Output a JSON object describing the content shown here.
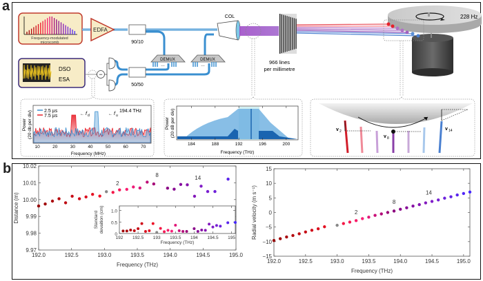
{
  "panel_a": {
    "letter": "a",
    "microcomb_label_1": "Frequency-modulated",
    "microcomb_label_2": "microcomb",
    "edfa_label": "EDFA",
    "splitter_top_label": "90/10",
    "splitter_bottom_label": "50/50",
    "demux_label": "DEMUX",
    "demux_dots": "…",
    "col_label": "COL",
    "dso_label": "DSO",
    "esa_label": "ESA",
    "minus_sign": "−",
    "grating_label_1": "966 lines",
    "grating_label_2": "per millimetre",
    "rotation_label": "228 Hz",
    "inset_rf": {
      "legend": [
        "2.5 µs",
        "7.5 µs"
      ],
      "legend_colors": [
        "#3a8fd0",
        "#e8202a"
      ],
      "annotation_freq": "194.4 THz",
      "fd_label": "f",
      "fd_sub": "d",
      "fu_label": "f",
      "fu_sub": "u",
      "ylabel_1": "Power",
      "ylabel_2": "(20 db per div)",
      "xlabel": "Frequency (MHz)",
      "xticks": [
        "10",
        "20",
        "30",
        "40",
        "50",
        "60",
        "70"
      ]
    },
    "inset_spectrum": {
      "ylabel_1": "Power",
      "ylabel_2": "(20 dB per div)",
      "xlabel": "Frequency (THz)",
      "xticks": [
        "184",
        "188",
        "192",
        "196",
        "200"
      ]
    },
    "inset_wheel": {
      "v2": "v",
      "v2_sub": "2",
      "v8": "v",
      "v8_sub": "8",
      "v14": "v",
      "v14_sub": "14"
    }
  },
  "panel_b": {
    "letter": "b"
  },
  "chart_data": [
    {
      "type": "scatter",
      "title": "",
      "xlabel": "Frequency (THz)",
      "ylabel": "Distance (m)",
      "xlim": [
        192.0,
        195.0
      ],
      "ylim": [
        9.97,
        10.02
      ],
      "xticks": [
        "192.0",
        "192.5",
        "193.0",
        "193.5",
        "194.0",
        "194.5",
        "195.0"
      ],
      "yticks": [
        "9.97",
        "9.98",
        "9.99",
        "10.00",
        "10.01",
        "10.02"
      ],
      "annotations": [
        {
          "text": "2",
          "x": 193.2,
          "y": 10.0085
        },
        {
          "text": "8",
          "x": 193.8,
          "y": 10.0135
        },
        {
          "text": "14",
          "x": 194.42,
          "y": 10.0118
        }
      ],
      "points": [
        {
          "x": 192.0,
          "y": 9.9962
        },
        {
          "x": 192.1,
          "y": 9.9974
        },
        {
          "x": 192.21,
          "y": 9.9991
        },
        {
          "x": 192.31,
          "y": 10.0005
        },
        {
          "x": 192.41,
          "y": 9.9981
        },
        {
          "x": 192.51,
          "y": 10.002
        },
        {
          "x": 192.62,
          "y": 10.0005
        },
        {
          "x": 192.72,
          "y": 10.0016
        },
        {
          "x": 192.82,
          "y": 10.0031
        },
        {
          "x": 192.93,
          "y": 10.0021
        },
        {
          "x": 193.03,
          "y": 10.0047
        },
        {
          "x": 193.13,
          "y": 10.0043
        },
        {
          "x": 193.23,
          "y": 10.0058
        },
        {
          "x": 193.34,
          "y": 10.0061
        },
        {
          "x": 193.44,
          "y": 10.0075
        },
        {
          "x": 193.54,
          "y": 10.0069
        },
        {
          "x": 193.65,
          "y": 10.0104
        },
        {
          "x": 193.75,
          "y": 10.0093
        },
        {
          "x": 193.96,
          "y": 10.0068
        },
        {
          "x": 194.06,
          "y": 10.0062
        },
        {
          "x": 194.16,
          "y": 10.009
        },
        {
          "x": 194.26,
          "y": 10.0088
        },
        {
          "x": 194.37,
          "y": 10.002
        },
        {
          "x": 194.47,
          "y": 10.008
        },
        {
          "x": 194.57,
          "y": 10.0048
        },
        {
          "x": 194.68,
          "y": 10.0048
        },
        {
          "x": 194.88,
          "y": 10.0122
        }
      ],
      "inset": {
        "type": "scatter",
        "xlabel": "Frequency (THz)",
        "ylabel_1": "Standard",
        "ylabel_2": "devaition (cm)",
        "xlim": [
          192.0,
          195.1
        ],
        "ylim": [
          0,
          1.2
        ],
        "xticks": [
          "192",
          "192.5",
          "193",
          "193.5",
          "194",
          "194.5",
          "195"
        ],
        "yticks": [
          "0",
          "0.5",
          "1.0"
        ],
        "points": [
          {
            "x": 192.1,
            "y": 0.11
          },
          {
            "x": 192.2,
            "y": 0.11
          },
          {
            "x": 192.3,
            "y": 0.15
          },
          {
            "x": 192.4,
            "y": 0.12
          },
          {
            "x": 192.5,
            "y": 0.21
          },
          {
            "x": 192.6,
            "y": 0.43
          },
          {
            "x": 192.7,
            "y": 0.09
          },
          {
            "x": 192.8,
            "y": 0.12
          },
          {
            "x": 192.9,
            "y": 0.43
          },
          {
            "x": 193.0,
            "y": 0.05
          },
          {
            "x": 193.1,
            "y": 0.22
          },
          {
            "x": 193.2,
            "y": 0.08
          },
          {
            "x": 193.3,
            "y": 0.14
          },
          {
            "x": 193.4,
            "y": 0.1
          },
          {
            "x": 193.5,
            "y": 0.36
          },
          {
            "x": 193.6,
            "y": 0.12
          },
          {
            "x": 193.7,
            "y": 0.09
          },
          {
            "x": 193.8,
            "y": 0.09
          },
          {
            "x": 194.0,
            "y": 0.21
          },
          {
            "x": 194.1,
            "y": 0.09
          },
          {
            "x": 194.2,
            "y": 0.15
          },
          {
            "x": 194.3,
            "y": 0.14
          },
          {
            "x": 194.4,
            "y": 0.41
          },
          {
            "x": 194.5,
            "y": 0.28
          },
          {
            "x": 194.6,
            "y": 0.35
          },
          {
            "x": 194.7,
            "y": 0.32
          },
          {
            "x": 194.9,
            "y": 0.47
          },
          {
            "x": 195.1,
            "y": 0.48
          }
        ]
      }
    },
    {
      "type": "scatter",
      "title": "",
      "xlabel": "Frequency (THz)",
      "ylabel": "Radial velocity (m s⁻¹)",
      "xlim": [
        192.0,
        195.1
      ],
      "ylim": [
        -15,
        15
      ],
      "xticks": [
        "192.0",
        "192.5",
        "193.0",
        "193.5",
        "194.0",
        "194.5",
        "195.0"
      ],
      "yticks": [
        "−15",
        "−10",
        "−5",
        "0",
        "5",
        "10",
        "15"
      ],
      "annotations": [
        {
          "text": "2",
          "x": 193.3,
          "y": -0.6
        },
        {
          "text": "8",
          "x": 193.9,
          "y": 2.9
        },
        {
          "text": "14",
          "x": 194.45,
          "y": 6.2
        }
      ],
      "points": [
        {
          "x": 192.0,
          "y": -9.6
        },
        {
          "x": 192.1,
          "y": -9.0
        },
        {
          "x": 192.2,
          "y": -8.4
        },
        {
          "x": 192.3,
          "y": -7.9
        },
        {
          "x": 192.4,
          "y": -7.3
        },
        {
          "x": 192.5,
          "y": -6.7
        },
        {
          "x": 192.6,
          "y": -6.1
        },
        {
          "x": 192.7,
          "y": -5.6
        },
        {
          "x": 192.8,
          "y": -4.9
        },
        {
          "x": 193.0,
          "y": -4.4
        },
        {
          "x": 193.1,
          "y": -3.8
        },
        {
          "x": 193.2,
          "y": -3.3
        },
        {
          "x": 193.3,
          "y": -2.8
        },
        {
          "x": 193.4,
          "y": -2.1
        },
        {
          "x": 193.5,
          "y": -1.6
        },
        {
          "x": 193.6,
          "y": -1.0
        },
        {
          "x": 193.7,
          "y": -0.5
        },
        {
          "x": 193.8,
          "y": 0.0
        },
        {
          "x": 193.9,
          "y": 0.5
        },
        {
          "x": 194.0,
          "y": 1.1
        },
        {
          "x": 194.1,
          "y": 1.6
        },
        {
          "x": 194.2,
          "y": 2.2
        },
        {
          "x": 194.3,
          "y": 2.7
        },
        {
          "x": 194.4,
          "y": 3.3
        },
        {
          "x": 194.5,
          "y": 3.8
        },
        {
          "x": 194.6,
          "y": 4.3
        },
        {
          "x": 194.7,
          "y": 4.9
        },
        {
          "x": 194.8,
          "y": 5.4
        },
        {
          "x": 194.9,
          "y": 6.0
        },
        {
          "x": 195.0,
          "y": 6.5
        },
        {
          "x": 195.1,
          "y": 7.0
        }
      ]
    }
  ]
}
